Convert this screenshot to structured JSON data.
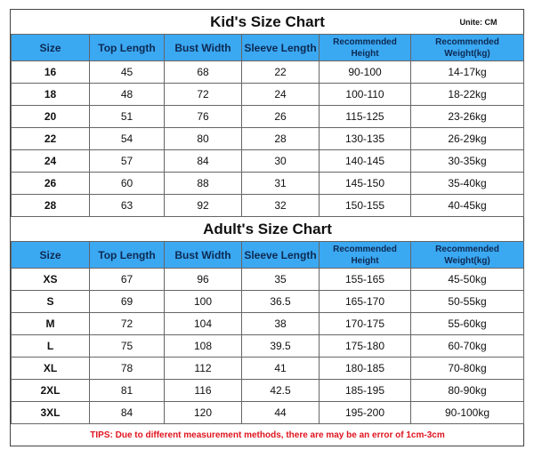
{
  "kids": {
    "title": "Kid's Size Chart",
    "unit": "Unite: CM",
    "headers": [
      "Size",
      "Top Length",
      "Bust Width",
      "Sleeve Length",
      "Recommended Height",
      "Recommended Weight(kg)"
    ],
    "rows": [
      [
        "16",
        "45",
        "68",
        "22",
        "90-100",
        "14-17kg"
      ],
      [
        "18",
        "48",
        "72",
        "24",
        "100-110",
        "18-22kg"
      ],
      [
        "20",
        "51",
        "76",
        "26",
        "115-125",
        "23-26kg"
      ],
      [
        "22",
        "54",
        "80",
        "28",
        "130-135",
        "26-29kg"
      ],
      [
        "24",
        "57",
        "84",
        "30",
        "140-145",
        "30-35kg"
      ],
      [
        "26",
        "60",
        "88",
        "31",
        "145-150",
        "35-40kg"
      ],
      [
        "28",
        "63",
        "92",
        "32",
        "150-155",
        "40-45kg"
      ]
    ]
  },
  "adults": {
    "title": "Adult's Size Chart",
    "headers": [
      "Size",
      "Top Length",
      "Bust Width",
      "Sleeve Length",
      "Recommended Height",
      "Recommended Weight(kg)"
    ],
    "rows": [
      [
        "XS",
        "67",
        "96",
        "35",
        "155-165",
        "45-50kg"
      ],
      [
        "S",
        "69",
        "100",
        "36.5",
        "165-170",
        "50-55kg"
      ],
      [
        "M",
        "72",
        "104",
        "38",
        "170-175",
        "55-60kg"
      ],
      [
        "L",
        "75",
        "108",
        "39.5",
        "175-180",
        "60-70kg"
      ],
      [
        "XL",
        "78",
        "112",
        "41",
        "180-185",
        "70-80kg"
      ],
      [
        "2XL",
        "81",
        "116",
        "42.5",
        "185-195",
        "80-90kg"
      ],
      [
        "3XL",
        "84",
        "120",
        "44",
        "195-200",
        "90-100kg"
      ]
    ]
  },
  "tips": "TIPS: Due to different measurement methods, there are may be an error of 1cm-3cm"
}
